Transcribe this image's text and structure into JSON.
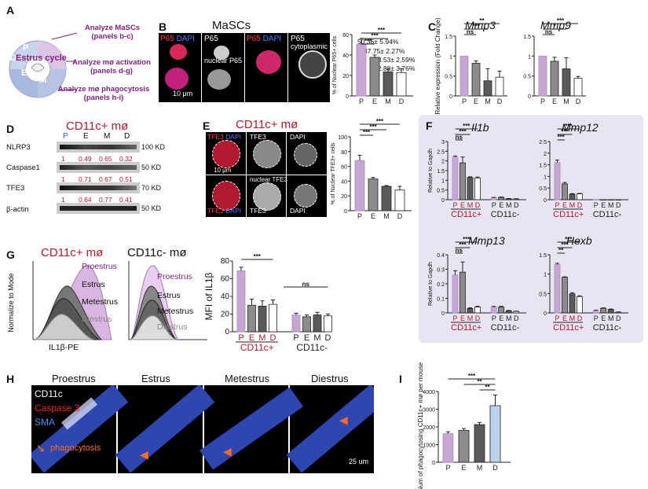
{
  "panels": {
    "A": {
      "label": "A",
      "cycle_title": "Estrus cycle",
      "phases": [
        "P",
        "E",
        "M",
        "D"
      ],
      "annotations": [
        "Analyze MaSCs (panels b-c)",
        "Analyze mø activation (panels d-g)",
        "Analyze mø phagocytosis (panels h-i)"
      ]
    },
    "B": {
      "label": "B",
      "title": "MaSCs",
      "image_labels": [
        "P65",
        "DAPI",
        "P65",
        "nuclear P65",
        "P65",
        "DAPI",
        "P65",
        "cytoplasmic P65"
      ],
      "scale": "10 μm",
      "ylabel": "% of Nuclear P65+ cells",
      "value_labels": [
        "50.36± 5.94%",
        "37.75± 2.27%",
        "23.53± 2.59%",
        "22.88± 3.76%"
      ],
      "sig": [
        "***",
        "***",
        "***"
      ]
    },
    "C": {
      "label": "C",
      "ylabel": "Relative expression (Fold Change)",
      "genes": [
        "Mmp3",
        "Mmp9"
      ],
      "sig_mmp3": [
        "**",
        "***",
        "ns"
      ],
      "sig_mmp9": [
        "***",
        "*",
        "ns"
      ]
    },
    "D": {
      "label": "D",
      "title": "CD11c+ mø",
      "lanes": [
        "P",
        "E",
        "M",
        "D"
      ],
      "bands": [
        {
          "name": "NLRP3",
          "size": "100 KD",
          "ratios": [
            "1",
            "0.49",
            "0.65",
            "0.32"
          ]
        },
        {
          "name": "Caspase1",
          "size": "50 KD",
          "ratios": [
            "1",
            "0.71",
            "0.67",
            "0.51"
          ]
        },
        {
          "name": "TFE3",
          "size": "70 KD",
          "ratios": [
            "1",
            "0.64",
            "0.77",
            "0.41"
          ]
        },
        {
          "name": "β-actin",
          "size": "50 KD",
          "ratios": []
        }
      ]
    },
    "E": {
      "label": "E",
      "title": "CD11c+ mø",
      "image_labels": [
        "TFE3",
        "DAPI",
        "TFE3",
        "DAPI",
        "TFE3",
        "DAPI",
        "nuclear TFE3",
        "TFE3",
        "DAPI"
      ],
      "scale": "10 μm",
      "ylabel": "% of Nuclear TFE3+ cells",
      "sig": [
        "***",
        "***",
        "***"
      ]
    },
    "F": {
      "label": "F",
      "genes": [
        "Il1b",
        "Mmp12",
        "Mmp13",
        "Hexb"
      ],
      "ylabel": "Relative to Gapdh",
      "groups": [
        "CD11c+",
        "CD11c-"
      ],
      "lanes": [
        "P",
        "E",
        "M",
        "D"
      ],
      "sig_top": [
        "***",
        "***",
        "ns"
      ],
      "sig_mmp12": [
        "***",
        "***",
        "***"
      ],
      "sig_mmp13": [
        "***",
        "***",
        "ns"
      ],
      "sig_hexb": [
        "***",
        "***",
        "**"
      ]
    },
    "G": {
      "label": "G",
      "title_pos": "CD11c+ mø",
      "title_neg": "CD11c- mø",
      "phases": [
        "Proestrus",
        "Estrus",
        "Metestrus",
        "Diestrus"
      ],
      "ylabel_hist": "Normalize to Mode",
      "xlabel_hist": "IL1β-PE",
      "ylabel": "MFI of IL1β",
      "groups": [
        "CD11c+",
        "CD11c-"
      ],
      "sig": [
        "***",
        "ns"
      ]
    },
    "H": {
      "label": "H",
      "phases": [
        "Proestrus",
        "Estrus",
        "Metestrus",
        "Diestrus"
      ],
      "legend": [
        "CD11c",
        "Caspase 3",
        "SMA"
      ],
      "annotation": "phagocytosis",
      "scale": "25 um"
    },
    "I": {
      "label": "I",
      "ylabel": "Num of phagocytosing CD11c+ mø per mouse",
      "sig": [
        "***",
        "**",
        "**"
      ]
    }
  },
  "chart_data": [
    {
      "type": "bar",
      "id": "B",
      "categories": [
        "P",
        "E",
        "M",
        "D"
      ],
      "values": [
        50.36,
        37.75,
        23.53,
        22.88
      ],
      "errors": [
        5.94,
        2.27,
        2.59,
        3.76
      ],
      "ylim": [
        0,
        60
      ],
      "yticks": [
        0,
        20,
        40,
        60
      ],
      "ylabel": "% of Nuclear P65+ cells"
    },
    {
      "type": "bar",
      "id": "C-Mmp3",
      "categories": [
        "P",
        "E",
        "M",
        "D"
      ],
      "values": [
        1.0,
        0.82,
        0.38,
        0.47
      ],
      "errors": [
        0,
        0.06,
        0.3,
        0.15
      ],
      "ylim": [
        0,
        1.5
      ],
      "yticks": [
        0,
        0.5,
        1.0,
        1.5
      ]
    },
    {
      "type": "bar",
      "id": "C-Mmp9",
      "categories": [
        "P",
        "E",
        "M",
        "D"
      ],
      "values": [
        1.0,
        0.87,
        0.68,
        0.44
      ],
      "errors": [
        0,
        0.1,
        0.28,
        0.05
      ],
      "ylim": [
        0,
        1.5
      ],
      "yticks": [
        0,
        0.5,
        1.0,
        1.5
      ]
    },
    {
      "type": "bar",
      "id": "E",
      "categories": [
        "P",
        "E",
        "M",
        "D"
      ],
      "values": [
        68,
        43,
        33,
        28
      ],
      "errors": [
        7,
        2,
        1,
        5
      ],
      "ylim": [
        0,
        100
      ],
      "yticks": [
        0,
        20,
        40,
        60,
        80,
        100
      ],
      "ylabel": "% of Nuclear TFE3+ cells"
    },
    {
      "type": "bar",
      "id": "F-Il1b",
      "categories": [
        "P",
        "E",
        "M",
        "D",
        "P",
        "E",
        "M",
        "D"
      ],
      "values": [
        2.2,
        1.9,
        1.15,
        1.12,
        0.1,
        0.12,
        0.05,
        0.04
      ],
      "errors": [
        0.05,
        0.3,
        0.03,
        0.05,
        0.02,
        0.02,
        0.01,
        0.01
      ],
      "ylim": [
        0,
        3
      ],
      "yticks": [
        0,
        0.5,
        1.0,
        1.5,
        2.0,
        2.5,
        3.0
      ]
    },
    {
      "type": "bar",
      "id": "F-Mmp12",
      "categories": [
        "P",
        "E",
        "M",
        "D",
        "P",
        "E",
        "M",
        "D"
      ],
      "values": [
        1.6,
        0.68,
        0.24,
        0.25,
        0.0,
        0.0,
        0.0,
        0.0
      ],
      "errors": [
        0.1,
        0.06,
        0.02,
        0.02,
        0,
        0,
        0,
        0
      ],
      "ylim": [
        0,
        2.5
      ],
      "yticks": [
        0,
        0.5,
        1.0,
        1.5,
        2.0,
        2.5
      ]
    },
    {
      "type": "bar",
      "id": "F-Mmp13",
      "categories": [
        "P",
        "E",
        "M",
        "D",
        "P",
        "E",
        "M",
        "D"
      ],
      "values": [
        0.26,
        0.28,
        0.03,
        0.04,
        0.04,
        0.04,
        0.015,
        0.01
      ],
      "errors": [
        0.03,
        0.07,
        0.005,
        0.005,
        0.005,
        0.005,
        0.002,
        0.002
      ],
      "ylim": [
        0,
        0.4
      ],
      "yticks": [
        0,
        0.1,
        0.2,
        0.3,
        0.4
      ]
    },
    {
      "type": "bar",
      "id": "F-Hexb",
      "categories": [
        "P",
        "E",
        "M",
        "D",
        "P",
        "E",
        "M",
        "D"
      ],
      "values": [
        1.25,
        0.92,
        0.49,
        0.42,
        0.06,
        0.12,
        0.09,
        0.02
      ],
      "errors": [
        0.03,
        0.01,
        0.03,
        0.02,
        0.01,
        0.01,
        0.01,
        0.005
      ],
      "ylim": [
        0,
        1.5
      ],
      "yticks": [
        0,
        0.5,
        1.0,
        1.5
      ]
    },
    {
      "type": "bar",
      "id": "G",
      "categories": [
        "P",
        "E",
        "M",
        "D",
        "P",
        "E",
        "M",
        "D"
      ],
      "values": [
        69,
        30,
        29,
        31,
        19,
        17,
        19,
        18
      ],
      "errors": [
        4,
        7,
        6,
        5,
        2,
        2,
        3,
        2
      ],
      "ylim": [
        0,
        80
      ],
      "yticks": [
        0,
        20,
        40,
        60,
        80
      ],
      "ylabel": "MFI of IL1β"
    },
    {
      "type": "bar",
      "id": "I",
      "categories": [
        "P",
        "E",
        "M",
        "D"
      ],
      "values": [
        1620,
        1800,
        2130,
        3200
      ],
      "errors": [
        100,
        110,
        120,
        600
      ],
      "ylim": [
        0,
        4000
      ],
      "yticks": [
        0,
        1000,
        2000,
        3000,
        4000
      ]
    }
  ],
  "colors": {
    "P": "#c8a6d4",
    "E": "#8c8c8c",
    "M": "#5a5a5a",
    "D": "#ffffff",
    "D_I": "#bcd3ee",
    "accent": "#7f1f7f",
    "red": "#c0172a",
    "panelF_bg": "#e6e6f2"
  }
}
